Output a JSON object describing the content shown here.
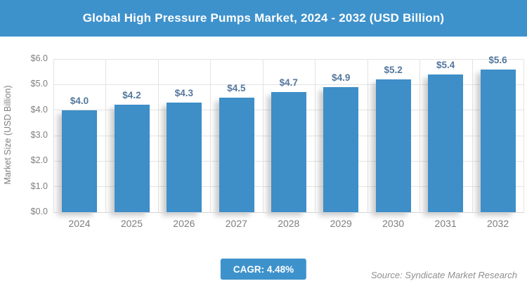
{
  "title": "Global High Pressure Pumps Market, 2024 - 2032 (USD Billion)",
  "chart_data": {
    "type": "bar",
    "categories": [
      "2024",
      "2025",
      "2026",
      "2027",
      "2028",
      "2029",
      "2030",
      "2031",
      "2032"
    ],
    "values": [
      4.0,
      4.2,
      4.3,
      4.5,
      4.7,
      4.9,
      5.2,
      5.4,
      5.6
    ],
    "bar_labels": [
      "$4.0",
      "$4.2",
      "$4.3",
      "$4.5",
      "$4.7",
      "$4.9",
      "$5.2",
      "$5.4",
      "$5.6"
    ],
    "title": "Global High Pressure Pumps Market, 2024 - 2032 (USD Billion)",
    "xlabel": "",
    "ylabel": "Market Size (USD Billion)",
    "ylim": [
      0,
      6
    ],
    "ytick_labels": [
      "$0.0",
      "$1.0",
      "$2.0",
      "$3.0",
      "$4.0",
      "$5.0",
      "$6.0"
    ],
    "grid": true,
    "legend": false,
    "bar_color": "#3E8EC8",
    "bar_label_color": "#54779E"
  },
  "footer": {
    "cagr_label": "CAGR: 4.48%",
    "source": "Source: Syndicate Market Research"
  },
  "colors": {
    "header_bg": "#3E92CC",
    "badge_bg": "#3E92CC",
    "gridline": "#E3E3E3",
    "axis_text": "#7E7E7E"
  }
}
